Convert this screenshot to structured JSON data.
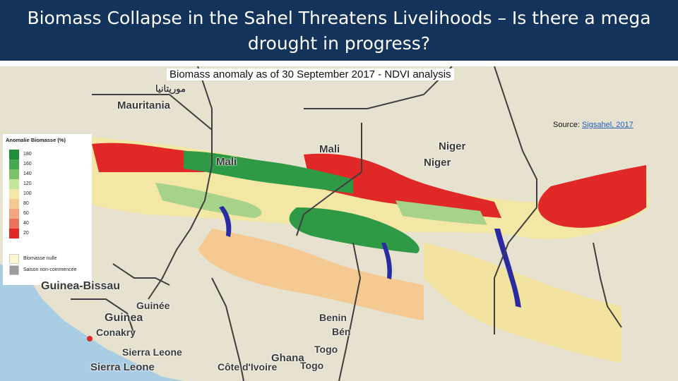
{
  "header": {
    "title_line1": "Biomass Collapse in the Sahel Threatens Livelihoods – Is there a mega",
    "title_line2": "drought in progress?"
  },
  "map": {
    "subtitle": "Biomass anomaly as of 30 September 2017 - NDVI analysis",
    "source_prefix": "Source: ",
    "source_link": "Sigsahel, 2017",
    "colors": {
      "background": "#c9d9e6",
      "sea": "#a9cde3",
      "land": "#e6e2cf",
      "deficit_strong": "#e02826",
      "deficit": "#f08a60",
      "normal": "#f3e7a6",
      "surplus": "#a6d28a",
      "surplus_strong": "#2f9a45",
      "water": "#2c2aa0",
      "border": "#3f3f3f"
    },
    "legend": {
      "title": "Anomalie Biomasse (%)",
      "items": [
        {
          "label": "180",
          "color": "#1f8f3a"
        },
        {
          "label": "160",
          "color": "#46a84f"
        },
        {
          "label": "140",
          "color": "#7cc26a"
        },
        {
          "label": "120",
          "color": "#c5e59a"
        },
        {
          "label": "100",
          "color": "#f3e7a6"
        },
        {
          "label": "80",
          "color": "#f5c992"
        },
        {
          "label": "60",
          "color": "#f2a77c"
        },
        {
          "label": "40",
          "color": "#ec7358"
        },
        {
          "label": "20",
          "color": "#e02826"
        }
      ],
      "extra": [
        {
          "label": "Biomasse nulle",
          "color": "#fbf7cf"
        },
        {
          "label": "Saison non-commencée",
          "color": "#9c9c9c"
        }
      ]
    },
    "country_labels": [
      {
        "id": "mauritania",
        "text": "Mauritania"
      },
      {
        "id": "mauritania-ar",
        "text": "موريتانيا"
      },
      {
        "id": "mali-1",
        "text": "Mali"
      },
      {
        "id": "mali-2",
        "text": "Mali"
      },
      {
        "id": "niger-1",
        "text": "Niger"
      },
      {
        "id": "niger-2",
        "text": "Niger"
      },
      {
        "id": "guinea-bissau",
        "text": "Guinea-Bissau"
      },
      {
        "id": "guinea",
        "text": "Guinea"
      },
      {
        "id": "guinee",
        "text": "Guinée"
      },
      {
        "id": "conakry",
        "text": "Conakry"
      },
      {
        "id": "sierra-leone-1",
        "text": "Sierra Leone"
      },
      {
        "id": "sierra-leone-2",
        "text": "Sierra Leone"
      },
      {
        "id": "benin-1",
        "text": "Benin"
      },
      {
        "id": "benin-2",
        "text": "Bén"
      },
      {
        "id": "togo-1",
        "text": "Togo"
      },
      {
        "id": "togo-2",
        "text": "Togo"
      },
      {
        "id": "ghana",
        "text": "Ghana"
      },
      {
        "id": "cote-divoire",
        "text": "Côte d'Ivoire"
      }
    ]
  }
}
